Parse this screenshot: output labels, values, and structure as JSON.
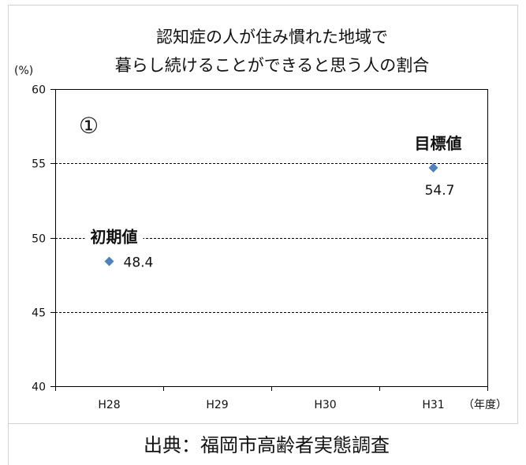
{
  "chart_data": {
    "type": "scatter",
    "title": [
      "認知症の人が住み慣れた地域で",
      "暮らし続けることができると思う人の割合"
    ],
    "ylabel": "(%)",
    "xlabel": "（年度）",
    "categories": [
      "H28",
      "H29",
      "H30",
      "H31"
    ],
    "ylim": [
      40,
      60
    ],
    "yticks": [
      40,
      45,
      50,
      55,
      60
    ],
    "grid": true,
    "marker": "diamond",
    "color": "#4f81bd",
    "points": [
      {
        "x": "H28",
        "y": 48.4,
        "label": "48.4",
        "label_placement": "right",
        "note": "初期値"
      },
      {
        "x": "H31",
        "y": 54.7,
        "label": "54.7",
        "label_placement": "below",
        "note": "目標値"
      }
    ]
  },
  "panel_label": "①",
  "source": "出典：福岡市高齢者実態調査"
}
